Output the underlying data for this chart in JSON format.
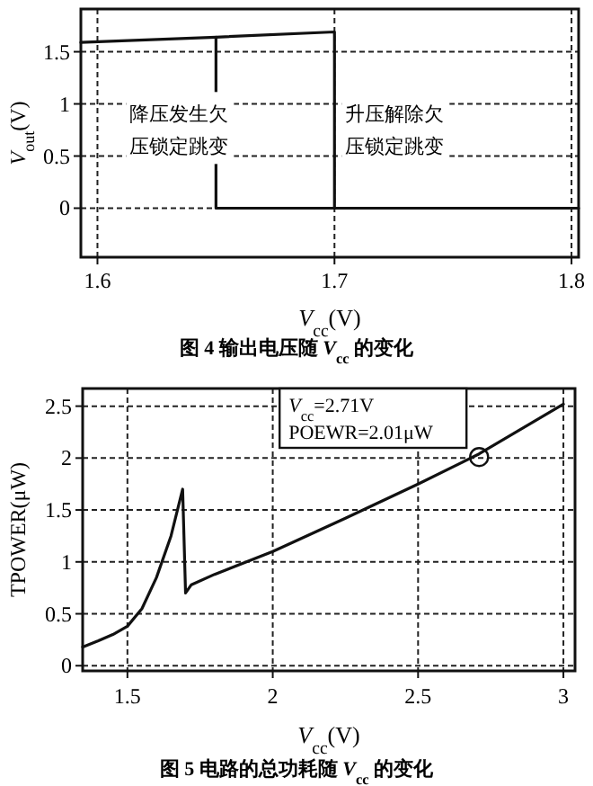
{
  "chart_data": [
    {
      "type": "line",
      "title": "图 4  输出电压随 V$_{cc}$ 的变化",
      "xlabel": "V$_{cc}$(V)",
      "ylabel": "V$_{out}$(V)",
      "xlim": [
        1.593,
        1.803
      ],
      "ylim": [
        -0.47,
        1.91
      ],
      "xticks": [
        1.6,
        1.7,
        1.8
      ],
      "yticks": [
        0,
        0.5,
        1,
        1.5
      ],
      "grid": true,
      "series": [
        {
          "color": "#111111",
          "x": [
            1.593,
            1.65,
            1.7,
            1.7,
            1.803
          ],
          "values": [
            1.59,
            1.64,
            1.69,
            0,
            0
          ]
        },
        {
          "color": "#111111",
          "x": [
            1.65,
            1.65,
            1.7
          ],
          "values": [
            1.64,
            0,
            0
          ]
        }
      ],
      "annotations": [
        {
          "text": "降压发生欠压锁定跳变",
          "x": 1.65,
          "y": 0.7
        },
        {
          "text": "升压解除欠压锁定跳变",
          "x": 1.7,
          "y": 0.7
        }
      ]
    },
    {
      "type": "line",
      "title": "图 5  电路的总功耗随 V$_{cc}$ 的变化",
      "xlabel": "V$_{cc}$(V)",
      "ylabel": "TPOWER(μW)",
      "xlim": [
        1.346,
        3.04
      ],
      "ylim": [
        -0.05,
        2.67
      ],
      "xticks": [
        1.5,
        2,
        2.5,
        3
      ],
      "yticks": [
        0,
        0.5,
        1,
        1.5,
        2,
        2.5
      ],
      "grid": true,
      "series": [
        {
          "color": "#111111",
          "x": [
            1.346,
            1.4,
            1.45,
            1.5,
            1.55,
            1.6,
            1.65,
            1.69,
            1.7,
            1.72,
            1.8,
            2.0,
            2.25,
            2.5,
            2.71,
            3.0
          ],
          "values": [
            0.18,
            0.24,
            0.3,
            0.38,
            0.55,
            0.85,
            1.25,
            1.7,
            0.7,
            0.78,
            0.88,
            1.1,
            1.42,
            1.75,
            2.04,
            2.52
          ]
        },
        {
          "type": "scatter",
          "color": "#111111",
          "marker": "circle",
          "x": [
            2.71
          ],
          "values": [
            2.01
          ]
        }
      ],
      "annotations": [
        "V$_{cc}$=2.71V\nPOEWR=2.01μW"
      ]
    }
  ]
}
